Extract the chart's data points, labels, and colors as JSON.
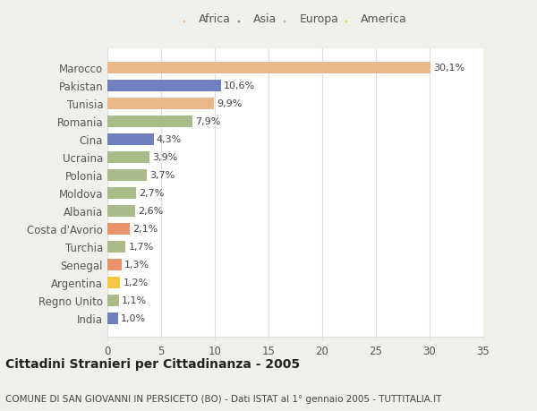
{
  "categories": [
    "India",
    "Regno Unito",
    "Argentina",
    "Senegal",
    "Turchia",
    "Costa d'Avorio",
    "Albania",
    "Moldova",
    "Polonia",
    "Ucraina",
    "Cina",
    "Romania",
    "Tunisia",
    "Pakistan",
    "Marocco"
  ],
  "values": [
    1.0,
    1.1,
    1.2,
    1.3,
    1.7,
    2.1,
    2.6,
    2.7,
    3.7,
    3.9,
    4.3,
    7.9,
    9.9,
    10.6,
    30.1
  ],
  "labels": [
    "1,0%",
    "1,1%",
    "1,2%",
    "1,3%",
    "1,7%",
    "2,1%",
    "2,6%",
    "2,7%",
    "3,7%",
    "3,9%",
    "4,3%",
    "7,9%",
    "9,9%",
    "10,6%",
    "30,1%"
  ],
  "colors": [
    "#7080be",
    "#aabb8a",
    "#f5c842",
    "#e8936a",
    "#aabb8a",
    "#e8936a",
    "#aabb8a",
    "#aabb8a",
    "#aabb8a",
    "#aabb8a",
    "#7080be",
    "#aabb8a",
    "#e8b88a",
    "#7080be",
    "#e8b88a"
  ],
  "legend_labels": [
    "Africa",
    "Asia",
    "Europa",
    "America"
  ],
  "legend_colors": [
    "#e8b88a",
    "#7080be",
    "#aabb8a",
    "#f5c842"
  ],
  "title": "Cittadini Stranieri per Cittadinanza - 2005",
  "subtitle": "COMUNE DI SAN GIOVANNI IN PERSICETO (BO) - Dati ISTAT al 1° gennaio 2005 - TUTTITALIA.IT",
  "xlim": [
    0,
    35
  ],
  "xticks": [
    0,
    5,
    10,
    15,
    20,
    25,
    30,
    35
  ],
  "background_color": "#f0f0eb",
  "bar_background": "#ffffff",
  "grid_color": "#dddddd",
  "title_fontsize": 10,
  "subtitle_fontsize": 7.5,
  "label_fontsize": 8,
  "tick_fontsize": 8.5
}
